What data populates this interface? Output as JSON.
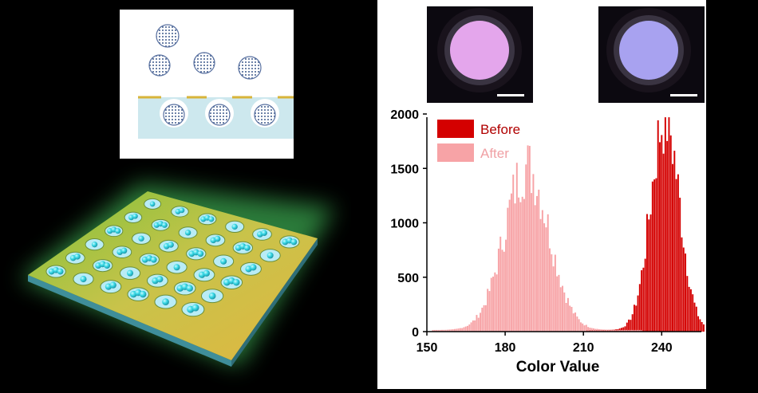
{
  "figure": {
    "legend": {
      "before": "Before",
      "after": "After"
    },
    "colors": {
      "before": "#d40000",
      "after": "#f7a3a6",
      "background": "#000000",
      "gold": "#d8b43a",
      "particle": "#3e5a8c",
      "well": "#b9ecf6"
    }
  },
  "chart_data": {
    "type": "bar",
    "title": "",
    "xlabel": "Color Value",
    "ylabel": "",
    "xlim": [
      150,
      256
    ],
    "ylim": [
      0,
      2000
    ],
    "xticks": [
      150,
      180,
      210,
      240
    ],
    "yticks": [
      0,
      500,
      1000,
      1500,
      2000
    ],
    "grid": false,
    "legend_position": "top-left",
    "series": [
      {
        "name": "Before",
        "color": "#d40000",
        "peak": 241,
        "sigma": 5.5,
        "max": 1960,
        "range": [
          211,
          256
        ]
      },
      {
        "name": "After",
        "color": "#f7a3a6",
        "peak": 188,
        "sigma": 8.5,
        "max": 1500,
        "range": [
          152,
          232
        ]
      }
    ]
  }
}
